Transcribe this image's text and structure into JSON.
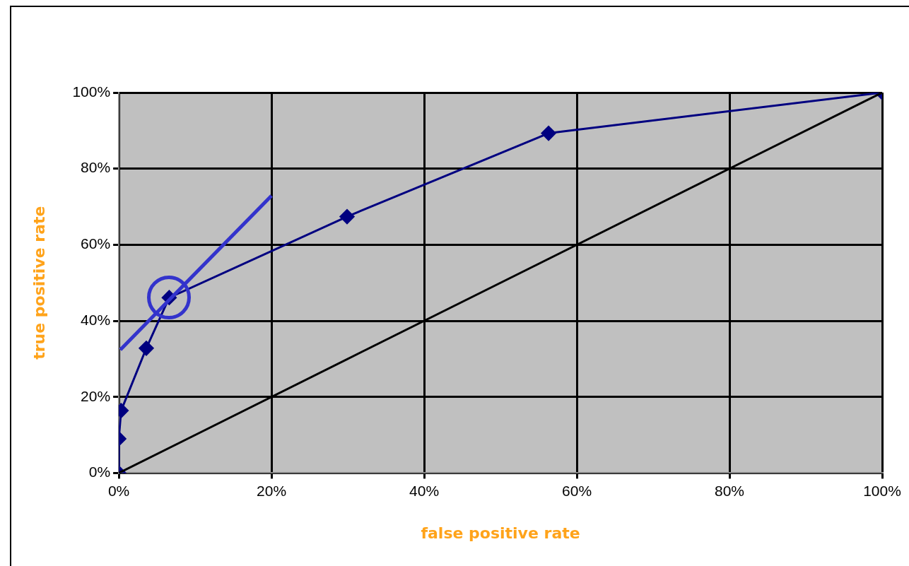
{
  "chart_data": {
    "type": "line",
    "xlabel": "false positive rate",
    "ylabel": "true positive rate",
    "xlim": [
      0,
      100
    ],
    "ylim": [
      0,
      100
    ],
    "xticks": [
      {
        "value": 0,
        "label": "0%"
      },
      {
        "value": 20,
        "label": "20%"
      },
      {
        "value": 40,
        "label": "40%"
      },
      {
        "value": 60,
        "label": "60%"
      },
      {
        "value": 80,
        "label": "80%"
      },
      {
        "value": 100,
        "label": "100%"
      }
    ],
    "yticks": [
      {
        "value": 0,
        "label": "0%"
      },
      {
        "value": 20,
        "label": "20%"
      },
      {
        "value": 40,
        "label": "40%"
      },
      {
        "value": 60,
        "label": "60%"
      },
      {
        "value": 80,
        "label": "80%"
      },
      {
        "value": 100,
        "label": "100%"
      }
    ],
    "grid": true,
    "legend": false,
    "series": [
      {
        "color": "#000080",
        "marker": "diamond",
        "x": [
          0,
          0,
          0.3,
          3.6,
          6.6,
          29.9,
          56.3,
          100
        ],
        "values": [
          0,
          9,
          16.4,
          32.8,
          46.1,
          67.4,
          89.3,
          100
        ]
      },
      {
        "color": "#000000",
        "marker": "none",
        "x": [
          0,
          100
        ],
        "values": [
          0,
          100
        ]
      },
      {
        "color": "#3333cc",
        "marker": "none",
        "x": [
          0.2,
          20
        ],
        "values": [
          32.4,
          72.9
        ]
      }
    ]
  }
}
